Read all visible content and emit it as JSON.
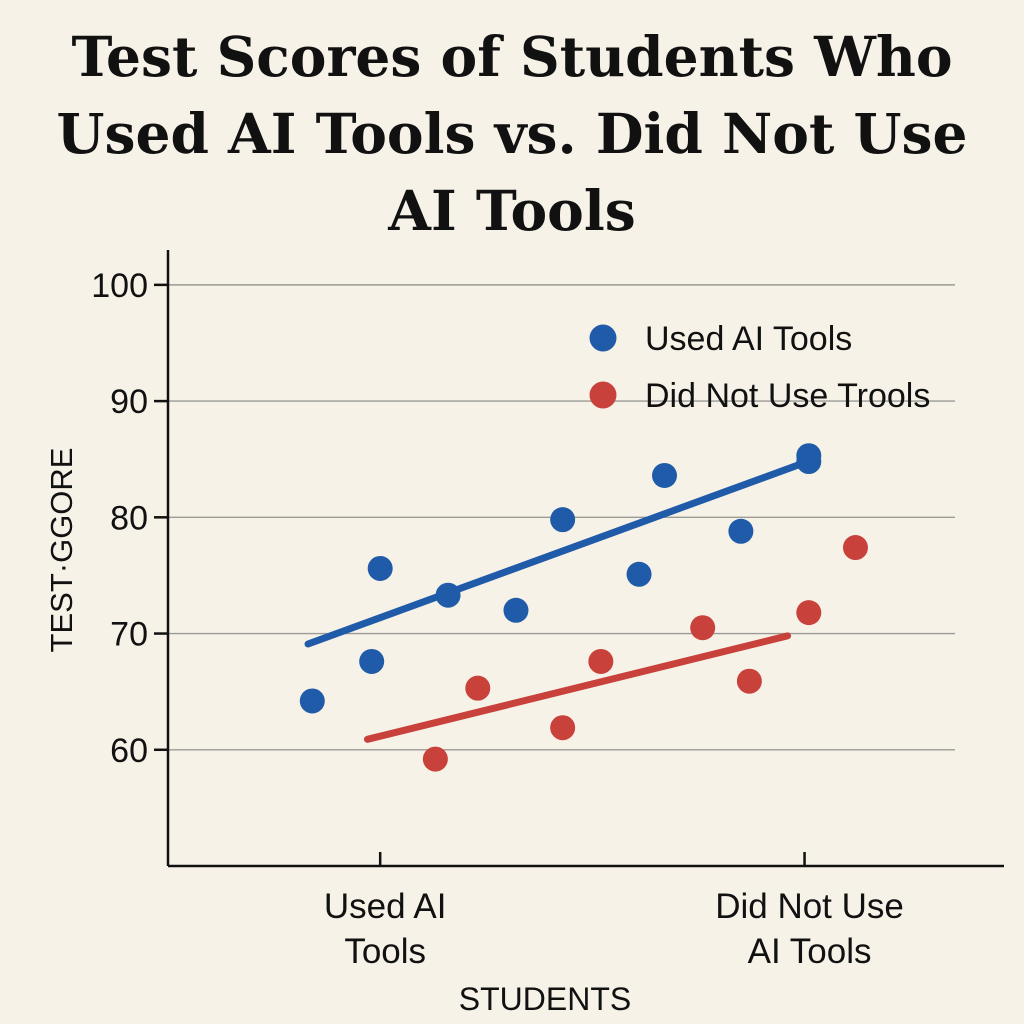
{
  "chart_data": {
    "type": "scatter",
    "title": "Test Scores of Students Who Used AI Tools vs. Did Not Use AI Tools",
    "xlabel": "STUDENTS",
    "ylabel": "TEST·GGORE",
    "ylim": [
      50,
      103
    ],
    "yticks": [
      60,
      70,
      80,
      90,
      100
    ],
    "xticks": [
      {
        "x": 1,
        "label_lines": [
          "Used AI",
          "Tools"
        ]
      },
      {
        "x": 2,
        "label_lines": [
          "Did Not Use",
          "AI Tools"
        ]
      }
    ],
    "xlim": [
      0.5,
      2.47
    ],
    "grid": true,
    "legend_position": "top-right",
    "series": [
      {
        "name": "Used AI Tools",
        "color": "#1f5ba8",
        "points": [
          {
            "x": 0.84,
            "y": 64.2
          },
          {
            "x": 0.98,
            "y": 67.6
          },
          {
            "x": 1.0,
            "y": 75.6
          },
          {
            "x": 1.16,
            "y": 73.3
          },
          {
            "x": 1.32,
            "y": 72.0
          },
          {
            "x": 1.43,
            "y": 79.8
          },
          {
            "x": 1.61,
            "y": 75.1
          },
          {
            "x": 1.67,
            "y": 83.6
          },
          {
            "x": 1.85,
            "y": 78.8
          },
          {
            "x": 2.01,
            "y": 84.8
          },
          {
            "x": 2.01,
            "y": 85.3
          }
        ],
        "trend": [
          {
            "x": 0.83,
            "y": 69.1
          },
          {
            "x": 2.0,
            "y": 84.7
          }
        ]
      },
      {
        "name": "Did Not Use Trools",
        "color": "#c8413a",
        "points": [
          {
            "x": 1.13,
            "y": 59.2
          },
          {
            "x": 1.23,
            "y": 65.3
          },
          {
            "x": 1.43,
            "y": 61.9
          },
          {
            "x": 1.52,
            "y": 67.6
          },
          {
            "x": 1.76,
            "y": 70.5
          },
          {
            "x": 1.87,
            "y": 65.9
          },
          {
            "x": 2.01,
            "y": 71.8
          },
          {
            "x": 2.12,
            "y": 77.4
          }
        ],
        "trend": [
          {
            "x": 0.97,
            "y": 60.9
          },
          {
            "x": 1.96,
            "y": 69.8
          }
        ]
      }
    ]
  }
}
